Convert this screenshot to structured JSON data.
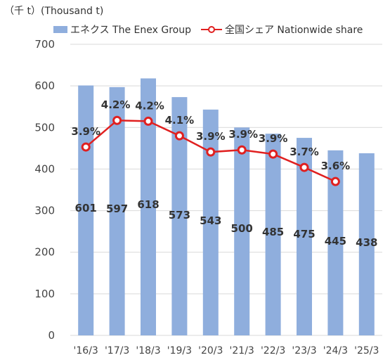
{
  "unit_label": "（千 t）(Thousand t)",
  "legend": {
    "bar_label": "エネクス The Enex Group",
    "line_label": "全国シェア Nationwide share"
  },
  "colors": {
    "bar": "#8faedd",
    "line": "#e02020",
    "grid": "#d9d9d9"
  },
  "chart_data": {
    "type": "bar",
    "categories": [
      "'16/3",
      "'17/3",
      "'18/3",
      "'19/3",
      "'20/3",
      "'21/3",
      "'22/3",
      "'23/3",
      "'24/3",
      "'25/3"
    ],
    "series": [
      {
        "name": "エネクス The Enex Group",
        "type": "bar",
        "values": [
          601,
          597,
          618,
          573,
          543,
          500,
          485,
          475,
          445,
          438
        ],
        "value_labels": [
          "601",
          "597",
          "618",
          "573",
          "543",
          "500",
          "485",
          "475",
          "445",
          "438"
        ]
      },
      {
        "name": "全国シェア Nationwide share",
        "type": "line",
        "values": [
          453,
          517,
          515,
          480,
          441,
          446,
          436,
          404,
          370,
          null
        ],
        "value_labels": [
          "3.9%",
          "4.2%",
          "4.2%",
          "4.1%",
          "3.9%",
          "3.9%",
          "3.9%",
          "3.7%",
          "3.6%",
          null
        ]
      }
    ],
    "yticks": [
      0,
      100,
      200,
      300,
      400,
      500,
      600,
      700
    ],
    "ylim": [
      0,
      700
    ],
    "grid": true,
    "legend_position": "top"
  }
}
